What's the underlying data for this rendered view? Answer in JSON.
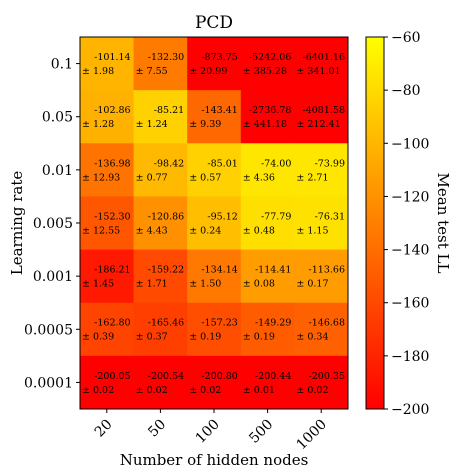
{
  "chart_data": {
    "type": "heatmap",
    "title": "PCD",
    "xlabel": "Number of hidden nodes",
    "ylabel": "Learning rate",
    "colorbar_label": "Mean test LL",
    "x_categories": [
      "20",
      "50",
      "100",
      "500",
      "1000"
    ],
    "y_categories": [
      "0.1",
      "0.05",
      "0.01",
      "0.005",
      "0.001",
      "0.0005",
      "0.0001"
    ],
    "value_range": [
      -200,
      -60
    ],
    "colorbar_ticks": [
      "−60",
      "−80",
      "−100",
      "−120",
      "−140",
      "−160",
      "−180",
      "−200"
    ],
    "colormap": "autumn",
    "cells": [
      [
        {
          "mean": "-101.14",
          "err": "± 1.98"
        },
        {
          "mean": "-132.30",
          "err": "± 7.55"
        },
        {
          "mean": "-873.75",
          "err": "± 20.99"
        },
        {
          "mean": "-5242.06",
          "err": "± 385.28"
        },
        {
          "mean": "-6401.16",
          "err": "± 341.01"
        }
      ],
      [
        {
          "mean": "-102.86",
          "err": "± 1.28"
        },
        {
          "mean": "-85.21",
          "err": "± 1.24"
        },
        {
          "mean": "-143.41",
          "err": "± 9.39"
        },
        {
          "mean": "-2736.78",
          "err": "± 441.18"
        },
        {
          "mean": "-4081.58",
          "err": "± 212.41"
        }
      ],
      [
        {
          "mean": "-136.98",
          "err": "± 12.93"
        },
        {
          "mean": "-98.42",
          "err": "± 0.77"
        },
        {
          "mean": "-85.01",
          "err": "± 0.57"
        },
        {
          "mean": "-74.00",
          "err": "± 4.36"
        },
        {
          "mean": "-73.99",
          "err": "± 2.71"
        }
      ],
      [
        {
          "mean": "-152.30",
          "err": "± 12.55"
        },
        {
          "mean": "-120.86",
          "err": "± 4.43"
        },
        {
          "mean": "-95.12",
          "err": "± 0.24"
        },
        {
          "mean": "-77.79",
          "err": "± 0.48"
        },
        {
          "mean": "-76.31",
          "err": "± 1.15"
        }
      ],
      [
        {
          "mean": "-186.21",
          "err": "± 1.45"
        },
        {
          "mean": "-159.22",
          "err": "± 1.71"
        },
        {
          "mean": "-134.14",
          "err": "± 1.50"
        },
        {
          "mean": "-114.41",
          "err": "± 0.08"
        },
        {
          "mean": "-113.66",
          "err": "± 0.17"
        }
      ],
      [
        {
          "mean": "-162.80",
          "err": "± 0.39"
        },
        {
          "mean": "-165.46",
          "err": "± 0.37"
        },
        {
          "mean": "-157.23",
          "err": "± 0.19"
        },
        {
          "mean": "-149.29",
          "err": "± 0.19"
        },
        {
          "mean": "-146.68",
          "err": "± 0.34"
        }
      ],
      [
        {
          "mean": "-200.05",
          "err": "± 0.02"
        },
        {
          "mean": "-200.54",
          "err": "± 0.02"
        },
        {
          "mean": "-200.80",
          "err": "± 0.02"
        },
        {
          "mean": "-200.44",
          "err": "± 0.01"
        },
        {
          "mean": "-200.35",
          "err": "± 0.02"
        }
      ]
    ]
  }
}
